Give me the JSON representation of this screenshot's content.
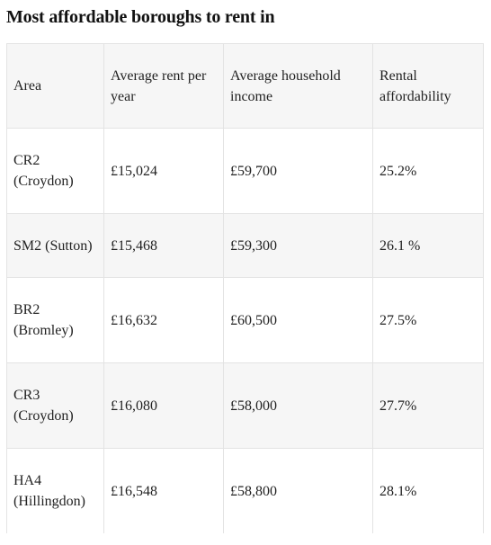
{
  "title": "Most affordable boroughs to rent in",
  "table": {
    "headers": [
      "Area",
      "Average rent per year",
      "Average household income",
      "Rental affordability"
    ],
    "rows": [
      [
        "CR2 (Croydon)",
        "£15,024",
        "£59,700",
        "25.2%"
      ],
      [
        "SM2 (Sutton)",
        "£15,468",
        "£59,300",
        "26.1 %"
      ],
      [
        "BR2 (Bromley)",
        "£16,632",
        "£60,500",
        "27.5%"
      ],
      [
        "CR3 (Croydon)",
        "£16,080",
        "£58,000",
        "27.7%"
      ],
      [
        "HA4 (Hillingdon)",
        "£16,548",
        "£58,800",
        "28.1%"
      ]
    ]
  }
}
